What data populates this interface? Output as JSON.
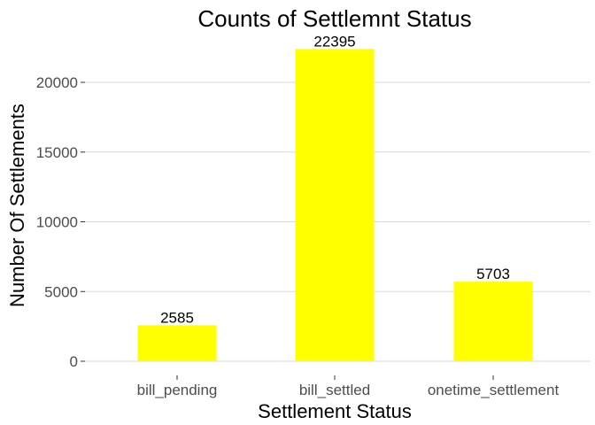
{
  "chart_data": {
    "type": "bar",
    "title": "Counts of Settlemnt Status",
    "xlabel": "Settlement Status",
    "ylabel": "Number Of Settlements",
    "categories": [
      "bill_pending",
      "bill_settled",
      "onetime_settlement"
    ],
    "values": [
      2585,
      22395,
      5703
    ],
    "data_labels": [
      "2585",
      "22395",
      "5703"
    ],
    "ylim": [
      0,
      23500
    ],
    "yticks": [
      0,
      5000,
      10000,
      15000,
      20000
    ],
    "ytick_labels": [
      "0",
      "5000",
      "10000",
      "15000",
      "20000"
    ],
    "grid": true,
    "bar_color": "#FFFF00",
    "legend": "none"
  }
}
